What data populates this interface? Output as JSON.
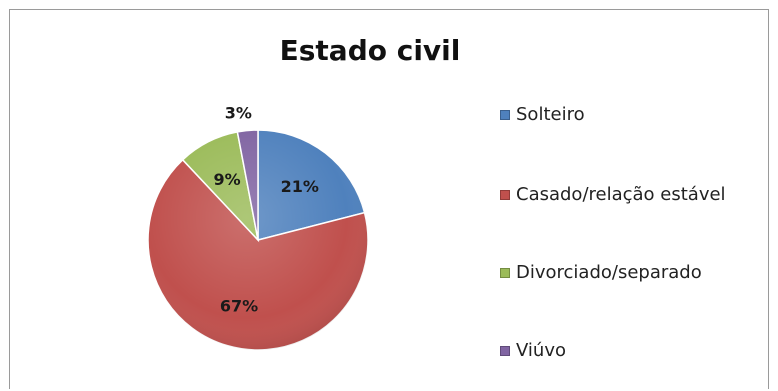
{
  "chart_data": {
    "type": "pie",
    "title": "Estado civil",
    "categories": [
      "Solteiro",
      "Casado/relação estável",
      "Divorciado/separado",
      "Viúvo"
    ],
    "values": [
      21,
      67,
      9,
      3
    ],
    "data_labels": [
      "21%",
      "67%",
      "9%",
      "3%"
    ],
    "colors": [
      "#4f81bd",
      "#c0504d",
      "#9bbb59",
      "#8064a2"
    ],
    "legend_position": "right",
    "start_angle": "12 o'clock, clockwise"
  }
}
